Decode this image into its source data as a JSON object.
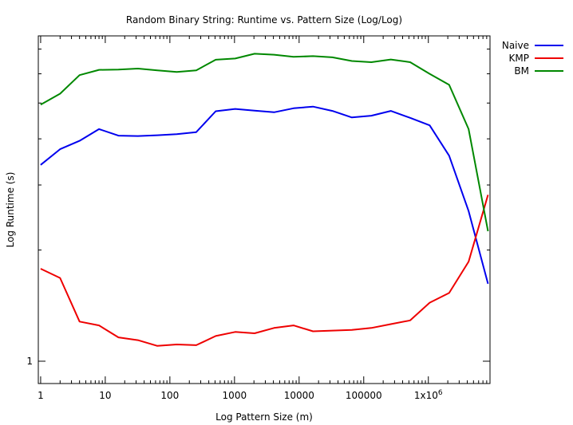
{
  "chart_data": {
    "type": "line",
    "title": "Random Binary String: Runtime vs. Pattern Size (Log/Log)",
    "xlabel": "Log Pattern Size (m)",
    "ylabel": "Log Runtime (s)",
    "xscale": "log",
    "yscale": "log",
    "xlim": [
      0.92,
      9000000
    ],
    "ylim": [
      0.87,
      7.6
    ],
    "x_ticks": [
      {
        "value": 1,
        "label": "1"
      },
      {
        "value": 10,
        "label": "10"
      },
      {
        "value": 100,
        "label": "100"
      },
      {
        "value": 1000,
        "label": "1000"
      },
      {
        "value": 10000,
        "label": "10000"
      },
      {
        "value": 100000,
        "label": "100000"
      },
      {
        "value": 1000000,
        "label": "1x10",
        "label_sup": "6"
      }
    ],
    "y_ticks": [
      {
        "value": 1,
        "label": "1"
      }
    ],
    "legend_position": "top-right",
    "x": [
      1,
      2,
      4,
      8,
      16,
      32,
      64,
      128,
      256,
      512,
      1024,
      2048,
      4096,
      8192,
      16384,
      32768,
      65536,
      131072,
      262144,
      524288,
      1048576,
      2097152,
      4194304,
      8388608
    ],
    "series": [
      {
        "name": "Naive",
        "color": "#0000ee",
        "values": [
          3.4,
          3.75,
          3.95,
          4.25,
          4.08,
          4.07,
          4.09,
          4.12,
          4.17,
          4.75,
          4.82,
          4.77,
          4.72,
          4.84,
          4.89,
          4.76,
          4.57,
          4.62,
          4.76,
          4.56,
          4.35,
          3.6,
          2.55,
          1.62
        ]
      },
      {
        "name": "KMP",
        "color": "#ee0000",
        "values": [
          1.78,
          1.68,
          1.28,
          1.25,
          1.16,
          1.14,
          1.1,
          1.11,
          1.105,
          1.17,
          1.2,
          1.19,
          1.23,
          1.25,
          1.205,
          1.21,
          1.215,
          1.23,
          1.26,
          1.29,
          1.44,
          1.53,
          1.86,
          2.82
        ]
      },
      {
        "name": "BM",
        "color": "#008800",
        "values": [
          4.95,
          5.3,
          5.95,
          6.15,
          6.16,
          6.2,
          6.13,
          6.07,
          6.13,
          6.55,
          6.6,
          6.8,
          6.76,
          6.67,
          6.7,
          6.65,
          6.5,
          6.45,
          6.56,
          6.45,
          6.0,
          5.6,
          4.25,
          2.25
        ]
      }
    ]
  }
}
